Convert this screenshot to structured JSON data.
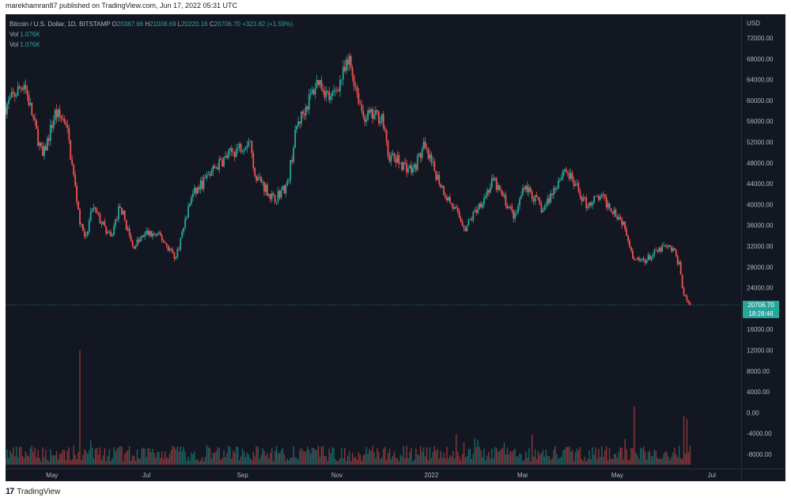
{
  "header": {
    "published_text": "marekhamran87 published on TradingView.com, Jun 17, 2022 05:31 UTC"
  },
  "legend": {
    "symbol": "Bitcoin / U.S. Dollar, 1D, BITSTAMP",
    "o_label": "O",
    "o": "20387.66",
    "h_label": "H",
    "h": "21008.69",
    "l_label": "L",
    "l": "20220.16",
    "c_label": "C",
    "c": "20706.70",
    "change": "+323.82 (+1.59%)",
    "vol1_label": "Vol",
    "vol1": "1.076K",
    "vol2_label": "Vol",
    "vol2": "1.076K"
  },
  "price_tag": {
    "price": "20706.70",
    "countdown": "18:28:46"
  },
  "footer": {
    "logo_glyph": "17",
    "brand": "TradingView"
  },
  "colors": {
    "background": "#131722",
    "up": "#26a69a",
    "down": "#ef5350",
    "axis_text": "#b2b5be",
    "last_price_line": "#26a69a"
  },
  "chart_data": {
    "type": "candlestick",
    "title": "Bitcoin / U.S. Dollar, 1D, BITSTAMP",
    "currency_label": "USD",
    "y_ticks": [
      "72000.00",
      "68000.00",
      "64000.00",
      "60000.00",
      "56000.00",
      "52000.00",
      "48000.00",
      "44000.00",
      "40000.00",
      "36000.00",
      "32000.00",
      "28000.00",
      "24000.00",
      "16000.00",
      "12000.00",
      "8000.00",
      "4000.00",
      "0.00",
      "-4000.00",
      "-8000.00"
    ],
    "y_tick_values": [
      72000,
      68000,
      64000,
      60000,
      56000,
      52000,
      48000,
      44000,
      40000,
      36000,
      32000,
      28000,
      24000,
      16000,
      12000,
      8000,
      4000,
      0,
      -4000,
      -8000
    ],
    "x_ticks": [
      "May",
      "Jul",
      "Sep",
      "Nov",
      "2022",
      "Mar",
      "May",
      "Jul"
    ],
    "x_tick_dates": [
      "2021-05-01",
      "2021-07-01",
      "2021-09-01",
      "2021-11-01",
      "2022-01-01",
      "2022-03-01",
      "2022-05-01",
      "2022-07-01"
    ],
    "x_range": [
      "2021-04-01",
      "2022-07-20"
    ],
    "y_range": [
      -10000,
      73000
    ],
    "last_price": 20706.7,
    "grid": false,
    "price_path": [
      [
        "2021-04-01",
        58800
      ],
      [
        "2021-04-13",
        63500
      ],
      [
        "2021-04-20",
        55000
      ],
      [
        "2021-04-25",
        49000
      ],
      [
        "2021-05-03",
        57500
      ],
      [
        "2021-05-10",
        56000
      ],
      [
        "2021-05-13",
        49500
      ],
      [
        "2021-05-19",
        37000
      ],
      [
        "2021-05-23",
        33500
      ],
      [
        "2021-05-27",
        39500
      ],
      [
        "2021-06-08",
        33500
      ],
      [
        "2021-06-14",
        40000
      ],
      [
        "2021-06-22",
        31800
      ],
      [
        "2021-07-01",
        34500
      ],
      [
        "2021-07-10",
        33800
      ],
      [
        "2021-07-20",
        29800
      ],
      [
        "2021-07-30",
        41500
      ],
      [
        "2021-08-14",
        47000
      ],
      [
        "2021-08-23",
        49500
      ],
      [
        "2021-09-06",
        52500
      ],
      [
        "2021-09-08",
        46500
      ],
      [
        "2021-09-21",
        41000
      ],
      [
        "2021-09-30",
        43800
      ],
      [
        "2021-10-06",
        55000
      ],
      [
        "2021-10-20",
        64000
      ],
      [
        "2021-10-28",
        60000
      ],
      [
        "2021-11-09",
        67500
      ],
      [
        "2021-11-18",
        57000
      ],
      [
        "2021-11-30",
        57000
      ],
      [
        "2021-12-04",
        49500
      ],
      [
        "2021-12-20",
        46500
      ],
      [
        "2021-12-27",
        51000
      ],
      [
        "2022-01-10",
        42000
      ],
      [
        "2022-01-23",
        35500
      ],
      [
        "2022-02-10",
        44500
      ],
      [
        "2022-02-24",
        37500
      ],
      [
        "2022-03-02",
        44000
      ],
      [
        "2022-03-14",
        38800
      ],
      [
        "2022-03-28",
        47000
      ],
      [
        "2022-04-11",
        40000
      ],
      [
        "2022-04-20",
        41500
      ],
      [
        "2022-04-30",
        38500
      ],
      [
        "2022-05-06",
        36000
      ],
      [
        "2022-05-12",
        29000
      ],
      [
        "2022-05-20",
        29500
      ],
      [
        "2022-05-31",
        31800
      ],
      [
        "2022-06-06",
        31300
      ],
      [
        "2022-06-10",
        28500
      ],
      [
        "2022-06-13",
        22500
      ],
      [
        "2022-06-17",
        20700
      ]
    ],
    "volume_spikes": [
      [
        "2021-05-19",
        12000
      ],
      [
        "2022-05-12",
        1200
      ],
      [
        "2022-06-13",
        -600
      ],
      [
        "2022-06-15",
        -1200
      ]
    ]
  }
}
